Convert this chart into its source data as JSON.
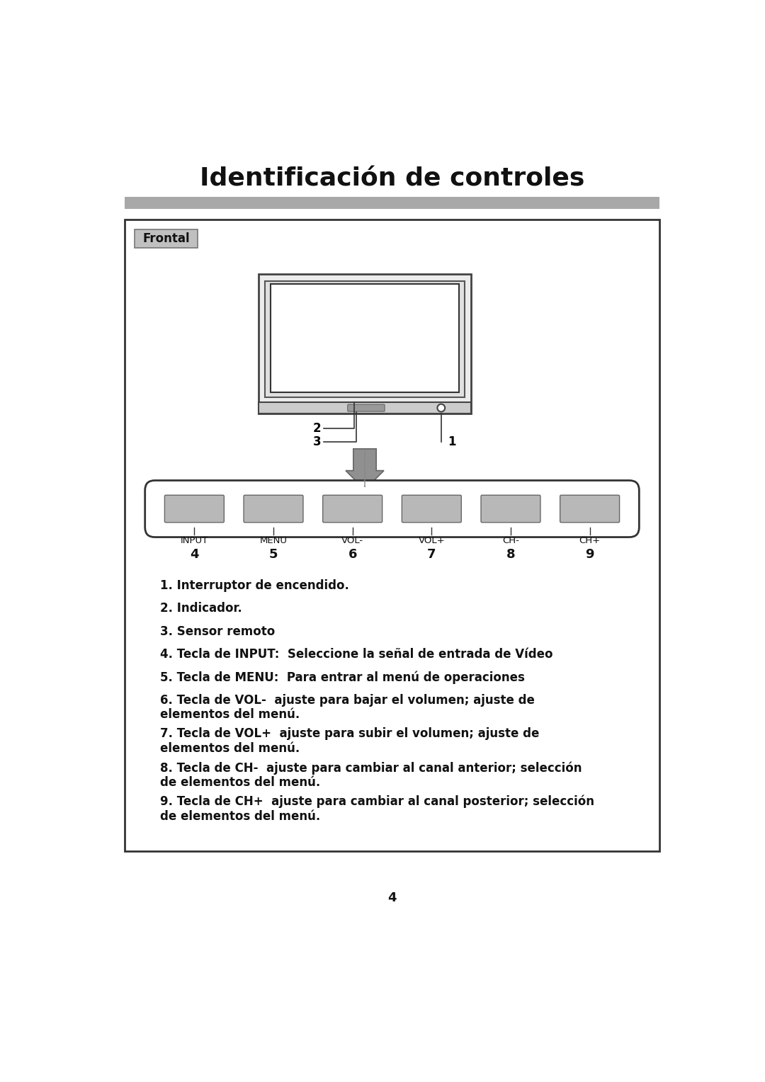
{
  "title": "Identificación de controles",
  "section_label": "Frontal",
  "page_number": "4",
  "background_color": "#ffffff",
  "border_color": "#222222",
  "header_bar_color": "#a8a8a8",
  "section_bg_color": "#c0c0c0",
  "button_color": "#b8b8b8",
  "button_labels": [
    "INPUT",
    "MENU",
    "VOL-",
    "VOL+",
    "CH-",
    "CH+"
  ],
  "button_numbers": [
    "4",
    "5",
    "6",
    "7",
    "8",
    "9"
  ],
  "desc1": "1. Interruptor de encendido.",
  "desc2": "2. Indicador.",
  "desc3": "3. Sensor remoto",
  "desc4": "4. Tecla de INPUT:  Seleccione la señal de entrada de Vídeo",
  "desc5": "5. Tecla de MENU:  Para entrar al menú de operaciones",
  "desc6a": "6. Tecla de VOL-  ajuste para bajar el volumen; ajuste de",
  "desc6b": "elementos del menú.",
  "desc7a": "7. Tecla de VOL+  ajuste para subir el volumen; ajuste de",
  "desc7b": "elementos del menú.",
  "desc8a": "8. Tecla de CH-  ajuste para cambiar al canal anterior; selección",
  "desc8b": "de elementos del menú.",
  "desc9a": "9. Tecla de CH+  ajuste para cambiar al canal posterior; selección",
  "desc9b": "de elementos del menú."
}
